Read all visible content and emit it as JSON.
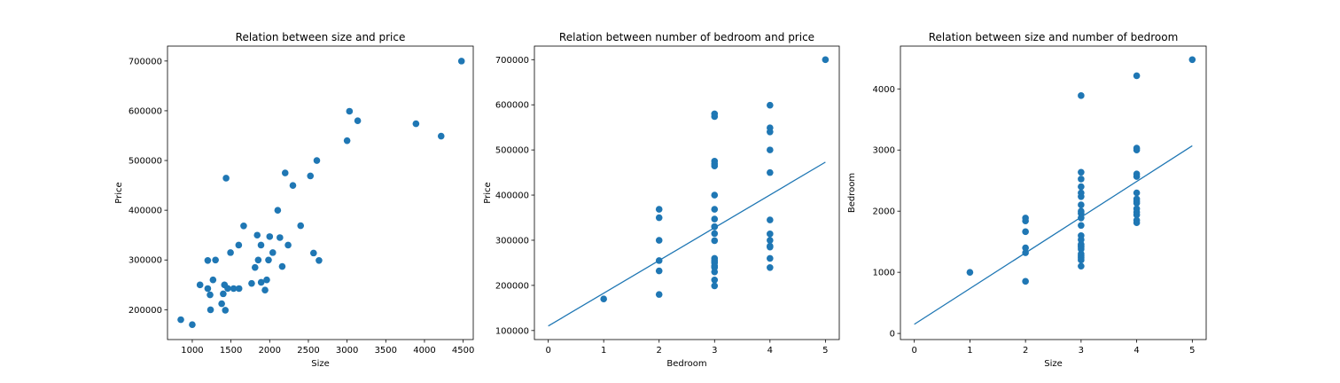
{
  "figure": {
    "background": "#ffffff",
    "point_color": "#1f77b4",
    "line_color": "#1f77b4"
  },
  "chart_data": [
    {
      "type": "scatter",
      "title": "Relation between size and price",
      "xlabel": "Size",
      "ylabel": "Price",
      "xlim": [
        680,
        4630
      ],
      "ylim": [
        140000,
        730000
      ],
      "xticks": [
        1000,
        1500,
        2000,
        2500,
        3000,
        3500,
        4000,
        4500
      ],
      "yticks": [
        200000,
        300000,
        400000,
        500000,
        600000,
        700000
      ],
      "x": [
        852,
        1000,
        1100,
        1200,
        1200,
        1230,
        1236,
        1268,
        1300,
        1380,
        1400,
        1416,
        1427,
        1437,
        1458,
        1494,
        1534,
        1600,
        1604,
        1664,
        1767,
        1811,
        1839,
        1852,
        1888,
        1890,
        1940,
        1962,
        1985,
        2000,
        2040,
        2104,
        2132,
        2162,
        2200,
        2238,
        2300,
        2400,
        2526,
        2567,
        2609,
        2637,
        3000,
        3031,
        3137,
        3890,
        4215,
        4478
      ],
      "y": [
        179900,
        169900,
        249900,
        299000,
        242500,
        229900,
        199900,
        259900,
        299900,
        212000,
        232000,
        249900,
        198999,
        464500,
        242900,
        314900,
        242500,
        329900,
        242500,
        368500,
        252900,
        284900,
        349900,
        299900,
        329999,
        255000,
        239500,
        259900,
        299900,
        347000,
        314900,
        399900,
        345000,
        287000,
        475000,
        329900,
        449900,
        369000,
        469000,
        314000,
        499998,
        299000,
        539900,
        599000,
        579900,
        573900,
        549000,
        699900
      ]
    },
    {
      "type": "scatter",
      "title": "Relation between number of bedroom and price",
      "xlabel": "Bedroom",
      "ylabel": "Price",
      "xlim": [
        -0.25,
        5.25
      ],
      "ylim": [
        80000,
        730000
      ],
      "xticks": [
        0,
        1,
        2,
        3,
        4,
        5
      ],
      "yticks": [
        100000,
        200000,
        300000,
        400000,
        500000,
        600000,
        700000
      ],
      "x": [
        1,
        2,
        2,
        2,
        2,
        2,
        2,
        3,
        3,
        3,
        3,
        3,
        3,
        3,
        3,
        3,
        3,
        3,
        3,
        3,
        3,
        3,
        3,
        3,
        3,
        3,
        3,
        3,
        3,
        4,
        4,
        4,
        4,
        4,
        4,
        4,
        4,
        4,
        4,
        4,
        4,
        5
      ],
      "y": [
        169900,
        179900,
        232000,
        255000,
        299900,
        349900,
        368500,
        198999,
        212000,
        229900,
        239500,
        242500,
        249900,
        259900,
        299000,
        314900,
        329900,
        347000,
        368500,
        399900,
        464500,
        469000,
        475000,
        573900,
        579900,
        252900,
        242900,
        329999,
        255000,
        239500,
        259900,
        287000,
        299900,
        314000,
        345000,
        449900,
        499998,
        539900,
        549000,
        599000,
        284900,
        699900
      ],
      "fit_line": {
        "x": [
          0,
          5
        ],
        "y": [
          110000,
          473000
        ]
      }
    },
    {
      "type": "scatter",
      "title": "Relation between size and number of bedroom",
      "xlabel": "Size",
      "ylabel": "Bedroom",
      "xlim": [
        -0.25,
        5.25
      ],
      "ylim": [
        -100,
        4700
      ],
      "xticks": [
        0,
        1,
        2,
        3,
        4,
        5
      ],
      "yticks": [
        0,
        1000,
        2000,
        3000,
        4000
      ],
      "x": [
        1,
        2,
        2,
        2,
        2,
        2,
        2,
        3,
        3,
        3,
        3,
        3,
        3,
        3,
        3,
        3,
        3,
        3,
        3,
        3,
        3,
        3,
        3,
        3,
        3,
        3,
        3,
        3,
        3,
        4,
        4,
        4,
        4,
        4,
        4,
        4,
        4,
        4,
        4,
        4,
        4,
        4,
        4,
        5
      ],
      "y": [
        1000,
        852,
        1320,
        1400,
        1664,
        1840,
        1888,
        1100,
        1200,
        1236,
        1268,
        1300,
        1380,
        1416,
        1437,
        1458,
        1534,
        1600,
        1767,
        1890,
        1962,
        2000,
        2104,
        2238,
        2300,
        2400,
        2526,
        2637,
        3890,
        1811,
        1852,
        1940,
        1985,
        2040,
        2132,
        2162,
        2300,
        2567,
        2609,
        3000,
        3031,
        2200,
        4215,
        4478
      ],
      "fit_line": {
        "x": [
          0,
          5
        ],
        "y": [
          150,
          3070
        ]
      }
    }
  ]
}
